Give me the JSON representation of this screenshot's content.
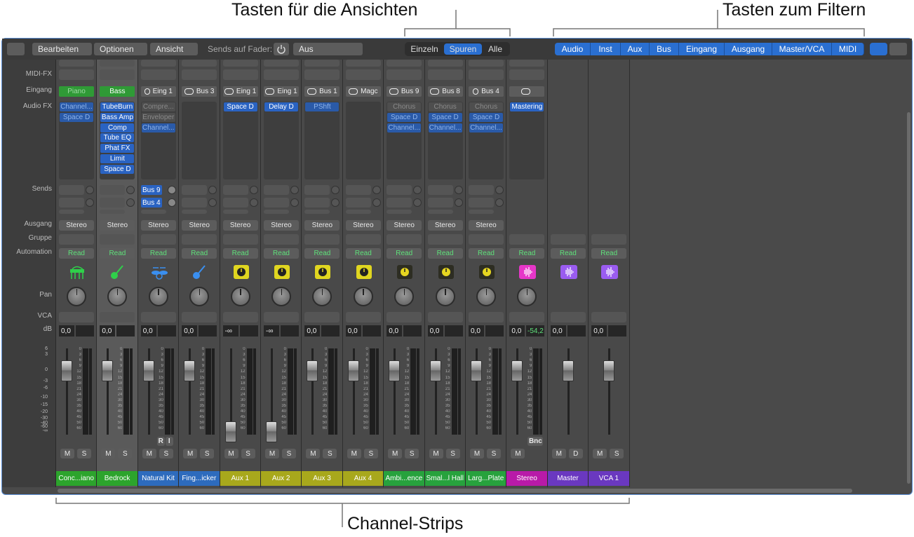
{
  "callouts": {
    "views": "Tasten für die Ansichten",
    "filters": "Tasten zum Filtern",
    "strips": "Channel-Strips"
  },
  "toolbar": {
    "menus": [
      "Bearbeiten",
      "Optionen",
      "Ansicht"
    ],
    "sends_label": "Sends auf Fader:",
    "sends_value": "Aus",
    "views": [
      "Einzeln",
      "Spuren",
      "Alle"
    ],
    "selected_view": 1,
    "filters": [
      "Audio",
      "Inst",
      "Aux",
      "Bus",
      "Eingang",
      "Ausgang",
      "Master/VCA",
      "MIDI"
    ]
  },
  "row_labels": {
    "midi_fx": "MIDI-FX",
    "input": "Eingang",
    "audio_fx": "Audio FX",
    "sends": "Sends",
    "output": "Ausgang",
    "group": "Gruppe",
    "automation": "Automation",
    "pan": "Pan",
    "vca": "VCA",
    "db": "dB"
  },
  "fader_scale": [
    "6",
    "3",
    "0",
    "-3",
    "-6",
    "-10",
    "-15",
    "-20",
    "-30",
    "-40",
    "-60",
    "-∞"
  ],
  "meter_scale": [
    "0",
    "3",
    "6",
    "9",
    "12",
    "15",
    "18",
    "21",
    "24",
    "30",
    "35",
    "40",
    "45",
    "50",
    "60"
  ],
  "channels": [
    {
      "name": "Conc...iano",
      "color": "#2ca42c",
      "icon": "piano",
      "icon_color": "#2fd04a",
      "input": "Piano",
      "input_mode": "inst",
      "fx": [
        {
          "name": "Channel...",
          "state": "dim"
        },
        {
          "name": "Space D",
          "state": "dim"
        }
      ],
      "sends": [],
      "output": "Stereo",
      "automation": "Read",
      "db": "0,0",
      "buttons": [
        "M",
        "S"
      ]
    },
    {
      "name": "Bedrock",
      "color": "#2ca42c",
      "icon": "guitar",
      "icon_color": "#2fd04a",
      "input": "Bass",
      "input_mode": "inst",
      "fx": [
        {
          "name": "TubeBurn",
          "state": "on"
        },
        {
          "name": "Bass Amp",
          "state": "on"
        },
        {
          "name": "Comp",
          "state": "on"
        },
        {
          "name": "Tube EQ",
          "state": "on"
        },
        {
          "name": "Phat FX",
          "state": "on"
        },
        {
          "name": "Limit",
          "state": "on"
        },
        {
          "name": "Space D",
          "state": "on"
        }
      ],
      "sends": [],
      "output": "Stereo",
      "automation": "Read",
      "db": "0,0",
      "buttons": [
        "M",
        "S"
      ],
      "selected": true
    },
    {
      "name": "Natural Kit",
      "color": "#2d6bbd",
      "icon": "drums",
      "icon_color": "#3a8ff0",
      "input": "Eing 1",
      "input_mode": "mono",
      "fx": [
        {
          "name": "Compre...",
          "state": "off"
        },
        {
          "name": "Enveloper",
          "state": "off"
        },
        {
          "name": "Channel...",
          "state": "dim"
        }
      ],
      "sends": [
        "Bus 9",
        "Bus 4"
      ],
      "output": "Stereo",
      "automation": "Read",
      "db": "0,0",
      "buttons": [
        "M",
        "S"
      ],
      "extra": [
        "R",
        "I"
      ]
    },
    {
      "name": "Fing...icker",
      "color": "#2d6bbd",
      "icon": "guitar",
      "icon_color": "#3a8ff0",
      "input": "Bus 3",
      "input_mode": "stereo",
      "fx": [],
      "sends": [],
      "output": "Stereo",
      "automation": "Read",
      "db": "0,0",
      "buttons": [
        "M",
        "S"
      ]
    },
    {
      "name": "Aux 1",
      "color": "#a8a81c",
      "icon": "knob",
      "icon_color": "#e0d620",
      "input": "Eing 1",
      "input_mode": "stereo",
      "fx": [
        {
          "name": "Space D",
          "state": "on"
        }
      ],
      "sends": [],
      "output": "Stereo",
      "automation": "Read",
      "db": "-∞",
      "buttons": [
        "M",
        "S"
      ]
    },
    {
      "name": "Aux 2",
      "color": "#a8a81c",
      "icon": "knob",
      "icon_color": "#e0d620",
      "input": "Eing 1",
      "input_mode": "stereo",
      "fx": [
        {
          "name": "Delay D",
          "state": "on"
        }
      ],
      "sends": [],
      "output": "Stereo",
      "automation": "Read",
      "db": "-∞",
      "buttons": [
        "M",
        "S"
      ]
    },
    {
      "name": "Aux 3",
      "color": "#a8a81c",
      "icon": "knob",
      "icon_color": "#e0d620",
      "input": "Bus 1",
      "input_mode": "stereo",
      "fx": [
        {
          "name": "PShft",
          "state": "dim"
        }
      ],
      "sends": [],
      "output": "Stereo",
      "automation": "Read",
      "db": "0,0",
      "buttons": [
        "M",
        "S"
      ]
    },
    {
      "name": "Aux 4",
      "color": "#a8a81c",
      "icon": "knob",
      "icon_color": "#e0d620",
      "input": "Magc",
      "input_mode": "stereo",
      "fx": [],
      "sends": [],
      "output": "Stereo",
      "automation": "Read",
      "db": "0,0",
      "buttons": [
        "M",
        "S"
      ]
    },
    {
      "name": "Ambi...ence",
      "color": "#27a23d",
      "icon": "knob",
      "icon_color": "#282828",
      "input": "Bus 9",
      "input_mode": "stereo",
      "fx": [
        {
          "name": "Chorus",
          "state": "off"
        },
        {
          "name": "Space D",
          "state": "dim"
        },
        {
          "name": "Channel...",
          "state": "dim"
        }
      ],
      "sends": [],
      "output": "Stereo",
      "automation": "Read",
      "db": "0,0",
      "buttons": [
        "M",
        "S"
      ]
    },
    {
      "name": "Smal...l Hall",
      "color": "#27a23d",
      "icon": "knob",
      "icon_color": "#282828",
      "input": "Bus 8",
      "input_mode": "stereo",
      "fx": [
        {
          "name": "Chorus",
          "state": "off"
        },
        {
          "name": "Space D",
          "state": "dim"
        },
        {
          "name": "Channel...",
          "state": "dim"
        }
      ],
      "sends": [],
      "output": "Stereo",
      "automation": "Read",
      "db": "0,0",
      "buttons": [
        "M",
        "S"
      ]
    },
    {
      "name": "Larg...Plate",
      "color": "#27a23d",
      "icon": "knob",
      "icon_color": "#282828",
      "input": "Bus 4",
      "input_mode": "mono",
      "fx": [
        {
          "name": "Chorus",
          "state": "off"
        },
        {
          "name": "Space D",
          "state": "dim"
        },
        {
          "name": "Channel...",
          "state": "dim"
        }
      ],
      "sends": [],
      "output": "Stereo",
      "automation": "Read",
      "db": "0,0",
      "buttons": [
        "M",
        "S"
      ]
    },
    {
      "name": "Stereo",
      "color": "#b81aa8",
      "icon": "wave",
      "icon_color": "#e636c8",
      "input_mode": "stereo",
      "fx": [
        {
          "name": "Mastering",
          "state": "on"
        }
      ],
      "automation": "Read",
      "db": "0,0",
      "peak": "-54,2",
      "buttons": [
        "M"
      ],
      "extra": [
        "Bnc"
      ]
    },
    {
      "name": "Master",
      "color": "#6a38c0",
      "icon": "wave",
      "icon_color": "#9a5cf0",
      "automation": "Read",
      "db": "0,0",
      "buttons": [
        "M",
        "D"
      ]
    },
    {
      "name": "VCA 1",
      "color": "#6a38c0",
      "icon": "wave",
      "icon_color": "#9a5cf0",
      "automation": "Read",
      "db": "0,0",
      "buttons": [
        "M",
        "S"
      ]
    }
  ]
}
